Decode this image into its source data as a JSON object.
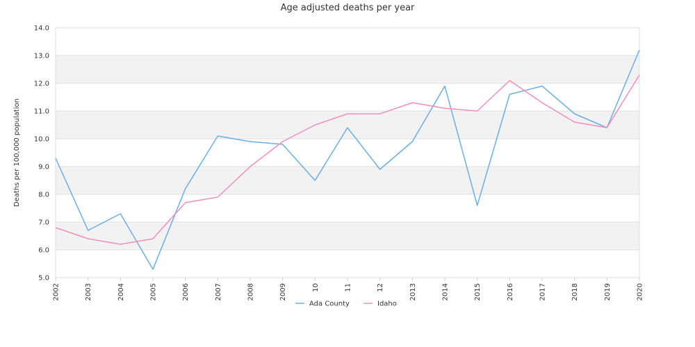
{
  "chart_data": {
    "type": "line",
    "title": "Age adjusted deaths per year",
    "ylabel": "Deaths per 100,000 population",
    "xlabel": "",
    "categories": [
      "2002",
      "2003",
      "2004",
      "2005",
      "2006",
      "2007",
      "2008",
      "2009",
      "10",
      "11",
      "12",
      "2013",
      "2014",
      "2015",
      "2016",
      "2017",
      "2018",
      "2019",
      "2020"
    ],
    "ylim": [
      5.0,
      14.0
    ],
    "yticks": [
      "5.0",
      "6.0",
      "7.0",
      "8.0",
      "9.0",
      "10.0",
      "11.0",
      "12.0",
      "13.0",
      "14.0"
    ],
    "alternating_bands": true,
    "legend_position": "bottom-center",
    "series": [
      {
        "name": "Ada County",
        "color": "#6aaee8",
        "values": [
          9.3,
          6.7,
          7.3,
          5.3,
          8.2,
          10.1,
          9.9,
          9.8,
          8.5,
          10.4,
          8.9,
          9.9,
          11.9,
          7.6,
          11.6,
          11.9,
          10.9,
          10.4,
          13.2
        ]
      },
      {
        "name": "Idaho",
        "color": "#ef8fb8",
        "values": [
          6.8,
          6.4,
          6.2,
          6.4,
          7.7,
          7.9,
          9.0,
          9.9,
          10.5,
          10.9,
          10.9,
          11.3,
          11.1,
          11.0,
          12.1,
          11.3,
          10.6,
          10.4,
          12.3
        ]
      }
    ]
  }
}
